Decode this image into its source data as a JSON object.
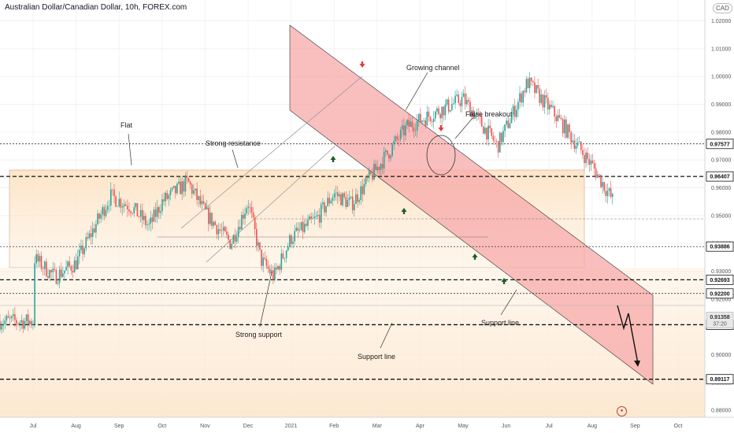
{
  "header": {
    "title": "Australian Dollar/Canadian Dollar, 10h, FOREX.com",
    "currency": "CAD"
  },
  "chart_data": {
    "type": "candlestick",
    "title": "Australian Dollar/Canadian Dollar, 10h, FOREX.com",
    "ylim": [
      0.8775,
      1.0275
    ],
    "y_ticks": [
      0.88,
      0.89,
      0.9,
      0.91,
      0.92,
      0.93,
      0.94,
      0.95,
      0.96,
      0.97,
      0.98,
      0.99,
      1.0,
      1.01,
      1.02
    ],
    "x_ticks": [
      "Jul",
      "Aug",
      "Sep",
      "Oct",
      "Nov",
      "Dec",
      "2021",
      "Feb",
      "Mar",
      "Apr",
      "May",
      "Jun",
      "Jul",
      "Aug",
      "Sep",
      "Oct"
    ],
    "price_path": [
      {
        "x": 0.0,
        "y": 0.935
      },
      {
        "x": 0.5,
        "y": 0.928
      },
      {
        "x": 1.0,
        "y": 0.933
      },
      {
        "x": 1.8,
        "y": 0.957
      },
      {
        "x": 2.3,
        "y": 0.953
      },
      {
        "x": 2.7,
        "y": 0.946
      },
      {
        "x": 3.0,
        "y": 0.955
      },
      {
        "x": 3.6,
        "y": 0.962
      },
      {
        "x": 4.0,
        "y": 0.951
      },
      {
        "x": 4.6,
        "y": 0.94
      },
      {
        "x": 5.0,
        "y": 0.955
      },
      {
        "x": 5.3,
        "y": 0.934
      },
      {
        "x": 5.6,
        "y": 0.928
      },
      {
        "x": 6.0,
        "y": 0.942
      },
      {
        "x": 6.6,
        "y": 0.949
      },
      {
        "x": 7.0,
        "y": 0.958
      },
      {
        "x": 7.4,
        "y": 0.954
      },
      {
        "x": 7.9,
        "y": 0.965
      },
      {
        "x": 8.7,
        "y": 0.982
      },
      {
        "x": 10.0,
        "y": 0.992
      },
      {
        "x": 10.8,
        "y": 0.975
      },
      {
        "x": 11.5,
        "y": 0.998
      },
      {
        "x": 12.2,
        "y": 0.985
      },
      {
        "x": 13.0,
        "y": 0.968
      },
      {
        "x": 13.5,
        "y": 0.955
      },
      {
        "x": 14.0,
        "y": 0.965
      },
      {
        "x": 14.8,
        "y": 0.973
      },
      {
        "x": 15.5,
        "y": 0.96
      },
      {
        "x": 16.0,
        "y": 0.945
      },
      {
        "x": 16.8,
        "y": 0.94
      },
      {
        "x": 17.8,
        "y": 0.937
      },
      {
        "x": 19.0,
        "y": 0.935
      },
      {
        "x": 20.0,
        "y": 0.925
      },
      {
        "x": 20.8,
        "y": 0.928
      },
      {
        "x": 21.5,
        "y": 0.918
      },
      {
        "x": 22.0,
        "y": 0.912
      }
    ],
    "horizontal_levels": [
      {
        "price": 0.97577,
        "label": "0.97577",
        "style": "dashed"
      },
      {
        "price": 0.96407,
        "label": "0.96407",
        "style": "bold-dashed"
      },
      {
        "price": 0.93886,
        "label": "0.93886",
        "style": "dashed"
      },
      {
        "price": 0.92693,
        "label": "0.92693",
        "style": "bold-dashed"
      },
      {
        "price": 0.922,
        "label": "0.92200",
        "style": "dashed"
      },
      {
        "price": 0.91077,
        "label": "0.91077",
        "style": "bold-dashed"
      },
      {
        "price": 0.89117,
        "label": "0.89117",
        "style": "bold-dashed"
      }
    ],
    "current_price": {
      "price": 0.91358,
      "label": "0.91358",
      "countdown": "37:20"
    },
    "annotations": {
      "flat": "Flat",
      "strong_resistance": "Strong resistance",
      "strong_support": "Strong support",
      "support_line_left": "Support line",
      "growing_channel": "Growing channel",
      "false_breakout": "False breakout",
      "support_line_right": "Support line"
    },
    "colors": {
      "up": "#26a69a",
      "down": "#ef5350",
      "channel": "#f8b3b3",
      "range": "#fde3c4",
      "arrow_up": "#1b5e20",
      "arrow_down": "#e53935"
    }
  }
}
